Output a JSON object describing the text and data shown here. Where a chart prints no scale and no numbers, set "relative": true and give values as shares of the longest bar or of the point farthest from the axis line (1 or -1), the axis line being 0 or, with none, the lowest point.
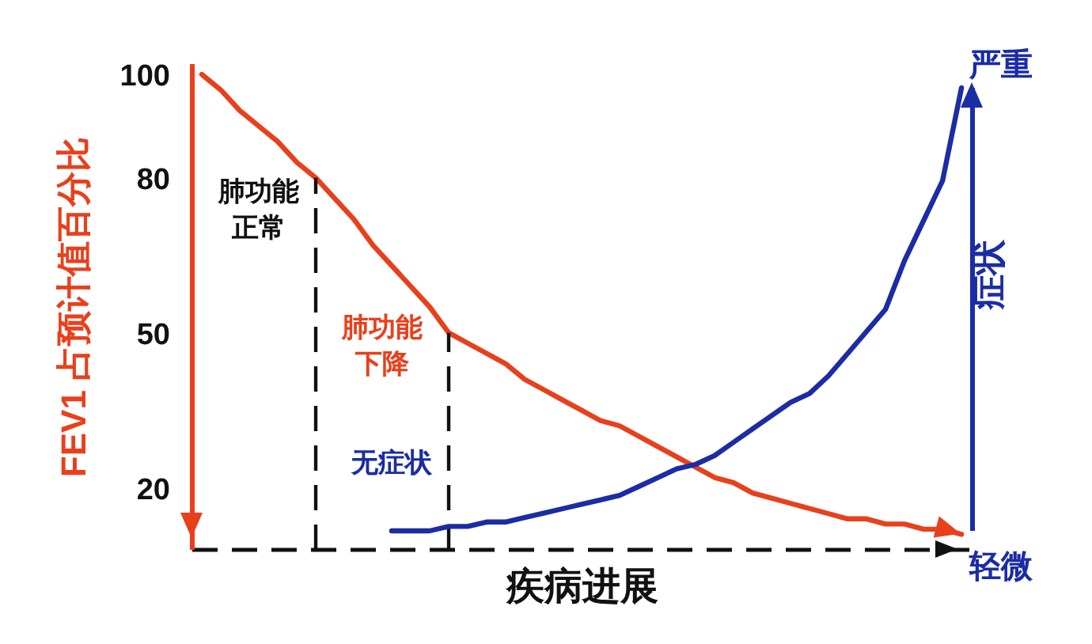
{
  "chart_data": [
    {
      "type": "line",
      "xlabel": "疾病进展",
      "ylabel": "FEV1 占预计值百分比",
      "categories": [
        null,
        null,
        null,
        null,
        null,
        null,
        null,
        null,
        null,
        null,
        null,
        null,
        null,
        null,
        null,
        null,
        null,
        null,
        null,
        null,
        null,
        null,
        null,
        null,
        null,
        null,
        null,
        null,
        null,
        null,
        null,
        null,
        null,
        null,
        null,
        null,
        null,
        null,
        null,
        null,
        null
      ],
      "ylim": [
        8,
        102
      ],
      "yticks": [
        20,
        50,
        80,
        100
      ],
      "series": [
        {
          "color": "#e8401c",
          "values": [
            100,
            97,
            93,
            90,
            87,
            83,
            80,
            76,
            72,
            67,
            63,
            59,
            55,
            50,
            48,
            46,
            44,
            41,
            39,
            37,
            35,
            33,
            32,
            30,
            28,
            26,
            24,
            22,
            21,
            19,
            18,
            17,
            16,
            15,
            14,
            14,
            13,
            13,
            12,
            12,
            11
          ]
        }
      ],
      "annotations": [
        "肺功能正常",
        "肺功能下降"
      ]
    },
    {
      "type": "line",
      "ylabel": "症状",
      "relative": true,
      "tick_labels": false,
      "categories": [
        null,
        null,
        null,
        null,
        null,
        null,
        null,
        null,
        null,
        null,
        null,
        null,
        null,
        null,
        null,
        null,
        null,
        null,
        null,
        null,
        null,
        null,
        null,
        null,
        null,
        null,
        null,
        null,
        null,
        null,
        null,
        null,
        null,
        null,
        null,
        null,
        null,
        null,
        null,
        null,
        null
      ],
      "series": [
        {
          "color": "#1b2ca5",
          "values": [
            null,
            null,
            null,
            null,
            null,
            null,
            null,
            null,
            null,
            null,
            0,
            0,
            0,
            0.01,
            0.01,
            0.02,
            0.02,
            0.03,
            0.04,
            0.05,
            0.06,
            0.07,
            0.08,
            0.1,
            0.12,
            0.14,
            0.15,
            0.17,
            0.2,
            0.23,
            0.26,
            0.29,
            0.31,
            0.35,
            0.4,
            0.45,
            0.5,
            0.61,
            0.7,
            0.79,
            1
          ]
        }
      ],
      "annotations": [
        "无症状",
        "严重",
        "轻微"
      ]
    }
  ]
}
